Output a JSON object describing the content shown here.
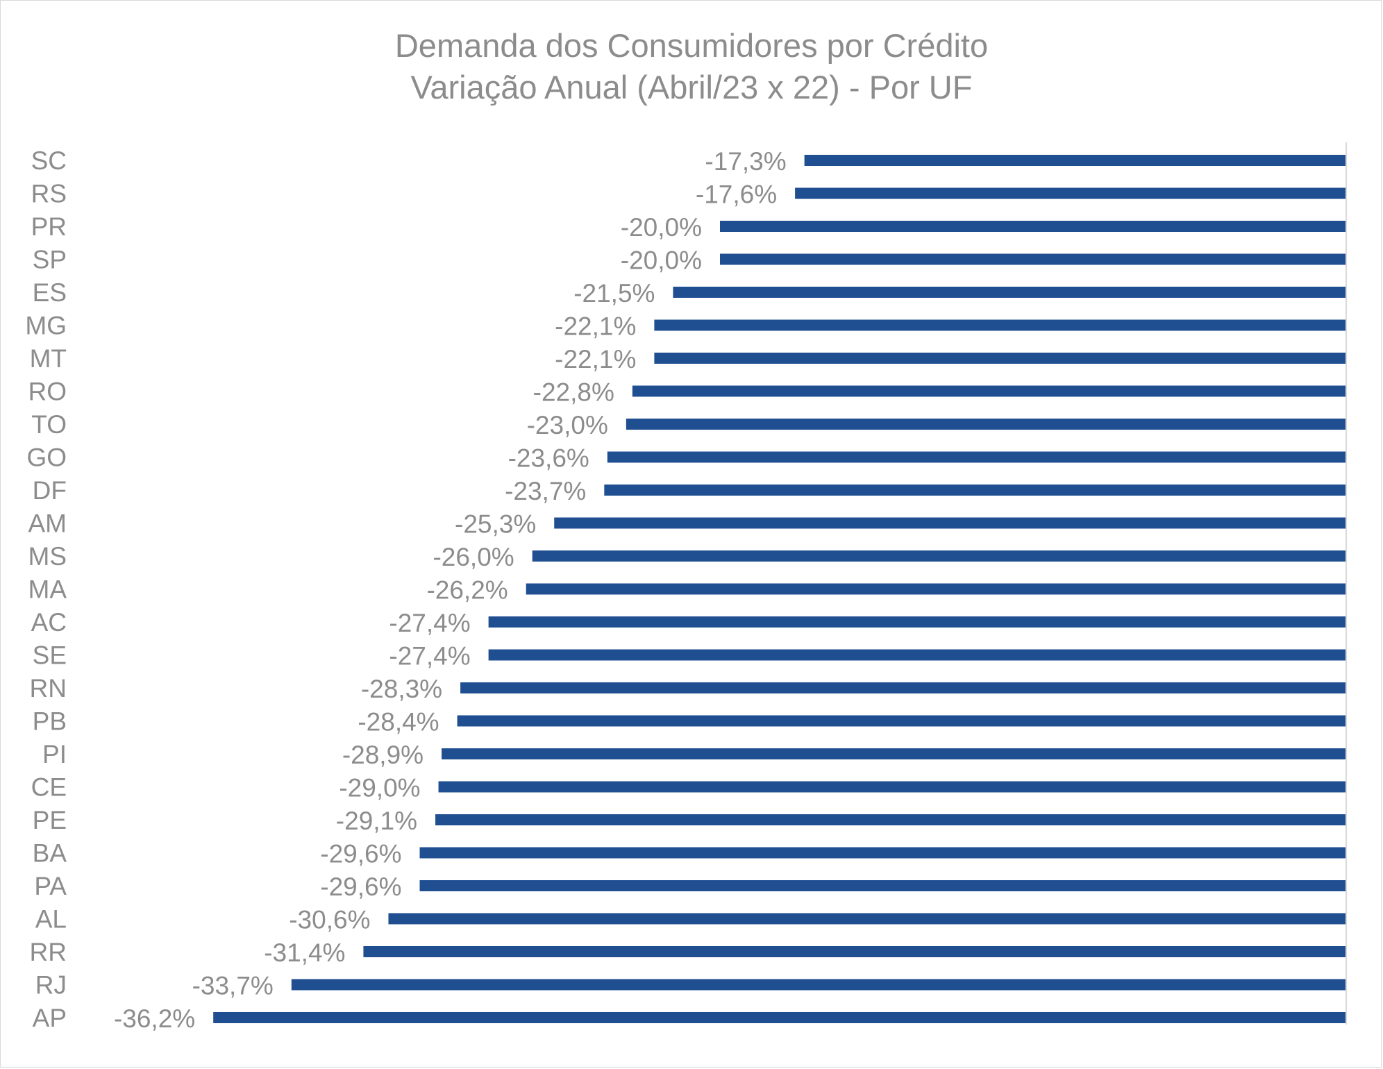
{
  "chart_data": {
    "type": "bar",
    "orientation": "horizontal",
    "title": "Demanda dos Consumidores por Crédito",
    "subtitle": "Variação Anual (Abril/23 x 22) - Por UF",
    "categories": [
      "SC",
      "RS",
      "PR",
      "SP",
      "ES",
      "MG",
      "MT",
      "RO",
      "TO",
      "GO",
      "DF",
      "AM",
      "MS",
      "MA",
      "AC",
      "SE",
      "RN",
      "PB",
      "PI",
      "CE",
      "PE",
      "BA",
      "PA",
      "AL",
      "RR",
      "RJ",
      "AP"
    ],
    "values": [
      -17.3,
      -17.6,
      -20.0,
      -20.0,
      -21.5,
      -22.1,
      -22.1,
      -22.8,
      -23.0,
      -23.6,
      -23.7,
      -25.3,
      -26.0,
      -26.2,
      -27.4,
      -27.4,
      -28.3,
      -28.4,
      -28.9,
      -29.0,
      -29.1,
      -29.6,
      -29.6,
      -30.6,
      -31.4,
      -33.7,
      -36.2
    ],
    "data_labels": [
      "-17,3%",
      "-17,6%",
      "-20,0%",
      "-20,0%",
      "-21,5%",
      "-22,1%",
      "-22,1%",
      "-22,8%",
      "-23,0%",
      "-23,6%",
      "-23,7%",
      "-25,3%",
      "-26,0%",
      "-26,2%",
      "-27,4%",
      "-27,4%",
      "-28,3%",
      "-28,4%",
      "-28,9%",
      "-29,0%",
      "-29,1%",
      "-29,6%",
      "-29,6%",
      "-30,6%",
      "-31,4%",
      "-33,7%",
      "-36,2%"
    ],
    "xlim": [
      -40,
      0
    ],
    "bar_color": "#1f4e91",
    "axis_color": "#d9d9d9",
    "text_color": "#8c8c8c",
    "grid": false,
    "legend": "none"
  }
}
